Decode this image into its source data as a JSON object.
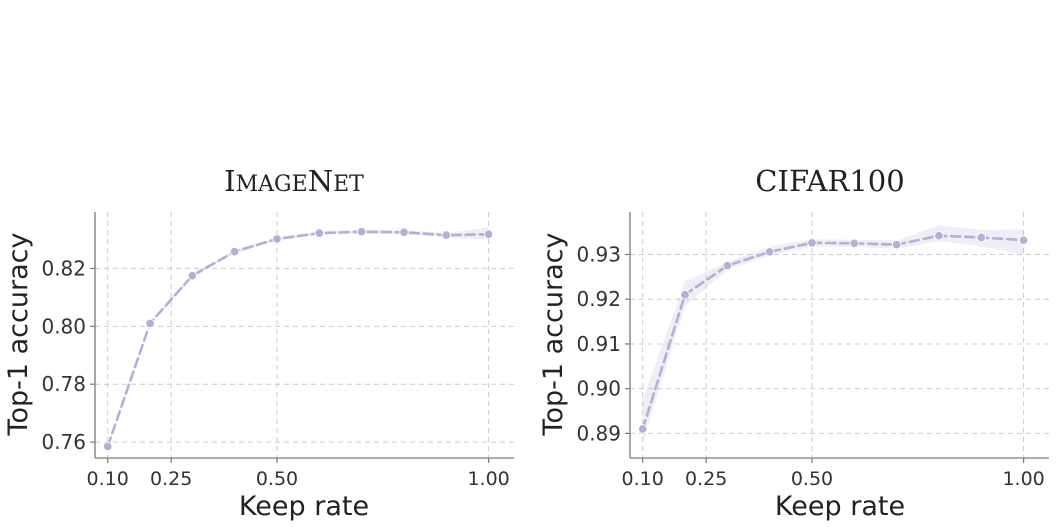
{
  "colors": {
    "line": "#b4afd6",
    "marker": "#b4afd6",
    "band": "#b4afd6"
  },
  "chart_data": [
    {
      "type": "line",
      "title": "ImageNet",
      "xlabel": "Keep rate",
      "ylabel": "Top-1 accuracy",
      "xlim": [
        0.07,
        1.06
      ],
      "ylim": [
        0.7545,
        0.8395
      ],
      "xticks": [
        0.1,
        0.25,
        0.5,
        1.0
      ],
      "xtick_labels": [
        "0.10",
        "0.25",
        "0.50",
        "1.00"
      ],
      "yticks": [
        0.76,
        0.78,
        0.8,
        0.82
      ],
      "ytick_labels": [
        "0.76",
        "0.78",
        "0.80",
        "0.82"
      ],
      "grid": true,
      "legend": "none",
      "series": [
        {
          "x": [
            0.1,
            0.2,
            0.3,
            0.4,
            0.5,
            0.6,
            0.7,
            0.8,
            0.9,
            1.0
          ],
          "y": [
            0.7585,
            0.801,
            0.8175,
            0.8258,
            0.8302,
            0.8322,
            0.8327,
            0.8325,
            0.8315,
            0.8318
          ],
          "lower": [
            0.758,
            0.8005,
            0.8168,
            0.8252,
            0.8297,
            0.8317,
            0.832,
            0.8318,
            0.8307,
            0.83
          ],
          "upper": [
            0.759,
            0.8015,
            0.8182,
            0.8264,
            0.8307,
            0.8327,
            0.8334,
            0.8332,
            0.8323,
            0.8342
          ]
        }
      ]
    },
    {
      "type": "line",
      "title": "CIFAR100",
      "xlabel": "Keep rate",
      "ylabel": "Top-1 accuracy",
      "xlim": [
        0.07,
        1.06
      ],
      "ylim": [
        0.8845,
        0.9395
      ],
      "xticks": [
        0.1,
        0.25,
        0.5,
        1.0
      ],
      "xtick_labels": [
        "0.10",
        "0.25",
        "0.50",
        "1.00"
      ],
      "yticks": [
        0.89,
        0.9,
        0.91,
        0.92,
        0.93
      ],
      "ytick_labels": [
        "0.89",
        "0.90",
        "0.91",
        "0.92",
        "0.93"
      ],
      "grid": true,
      "legend": "none",
      "series": [
        {
          "x": [
            0.1,
            0.2,
            0.3,
            0.4,
            0.5,
            0.6,
            0.7,
            0.8,
            0.9,
            1.0
          ],
          "y": [
            0.891,
            0.921,
            0.9275,
            0.9306,
            0.9326,
            0.9325,
            0.9322,
            0.9342,
            0.9338,
            0.9332
          ],
          "lower": [
            0.888,
            0.9185,
            0.9265,
            0.9298,
            0.9318,
            0.9317,
            0.9313,
            0.933,
            0.9318,
            0.93
          ],
          "upper": [
            0.8975,
            0.924,
            0.9283,
            0.9318,
            0.9334,
            0.9333,
            0.9331,
            0.9365,
            0.9355,
            0.9356
          ]
        }
      ]
    }
  ]
}
